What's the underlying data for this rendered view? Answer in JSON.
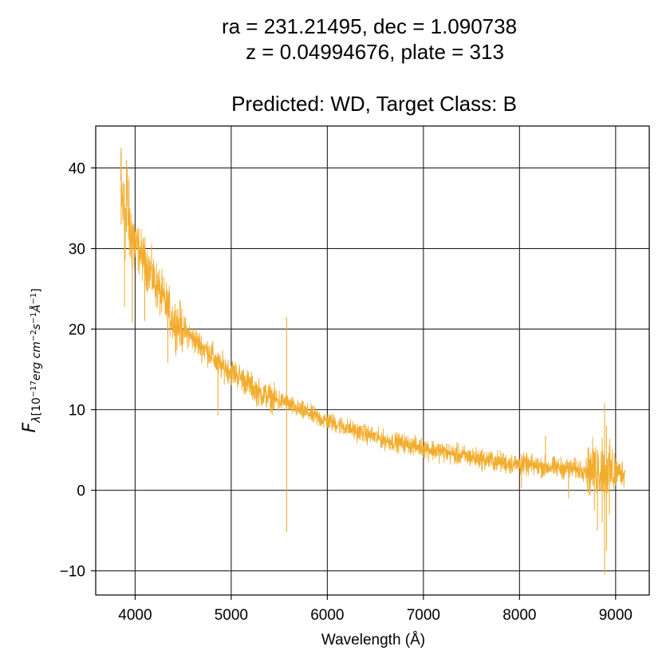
{
  "chart_data": {
    "type": "line",
    "title_lines": [
      "ra = 231.21495, dec = 1.090738",
      "z = 0.04994676, plate = 313",
      "Predicted: WD, Target Class: B"
    ],
    "xlabel": "Wavelength (Å)",
    "ylabel": {
      "symbol": "F",
      "subscript_lambda": "λ",
      "units_prefix": "[10",
      "exp1": "−17",
      "units_mid": "erg cm",
      "exp2": "−2",
      "units_s": "s",
      "exp3": "−1",
      "units_A": "Å",
      "exp4": "−1",
      "units_close": "]"
    },
    "xlim": [
      3590,
      9350
    ],
    "ylim": [
      -13.0,
      45.2
    ],
    "xticks": [
      4000,
      5000,
      6000,
      7000,
      8000,
      9000
    ],
    "xtick_labels": [
      "4000",
      "5000",
      "6000",
      "7000",
      "8000",
      "9000"
    ],
    "yticks": [
      -10,
      0,
      10,
      20,
      30,
      40
    ],
    "ytick_labels": [
      "−10",
      "0",
      "10",
      "20",
      "30",
      "40"
    ],
    "grid": true,
    "line_color": "#f2ad2e",
    "series": [
      {
        "x": [
          3850,
          3870,
          3880,
          3890,
          3900,
          3915,
          3930,
          3950,
          3970,
          3990,
          4030,
          4100,
          4200,
          4340,
          4400,
          4500,
          4600,
          4700,
          4800,
          4862,
          4900,
          5000,
          5100,
          5200,
          5300,
          5400,
          5500,
          5577,
          5600,
          5700,
          5800,
          5900,
          6000,
          6100,
          6200,
          6300,
          6400,
          6500,
          6600,
          6700,
          6800,
          6900,
          7000,
          7100,
          7200,
          7300,
          7400,
          7500,
          7600,
          7700,
          7800,
          7900,
          8000,
          8100,
          8200,
          8300,
          8400,
          8500,
          8600,
          8700,
          8750,
          8800,
          8850,
          8880,
          8900,
          8920,
          8950,
          9000,
          9050,
          9100
        ],
        "y": [
          38.0,
          35.5,
          34.5,
          33.5,
          33.0,
          36.5,
          34.0,
          31.5,
          32.0,
          30.5,
          30.0,
          28.5,
          26.0,
          22.5,
          21.0,
          20.0,
          18.8,
          17.8,
          16.8,
          15.5,
          15.4,
          14.8,
          14.0,
          13.0,
          12.0,
          11.6,
          11.0,
          11.0,
          10.6,
          10.0,
          9.6,
          9.0,
          8.6,
          8.2,
          7.8,
          7.3,
          7.0,
          6.6,
          6.2,
          6.0,
          5.8,
          5.5,
          5.3,
          5.0,
          4.8,
          4.5,
          4.3,
          4.1,
          3.9,
          3.7,
          3.5,
          3.3,
          3.2,
          3.1,
          3.0,
          2.9,
          2.8,
          2.7,
          2.6,
          2.6,
          2.5,
          2.5,
          2.4,
          2.3,
          2.3,
          2.3,
          2.3,
          2.3,
          2.2,
          2.2
        ]
      }
    ],
    "spikes": [
      {
        "x": 3855,
        "ymin": 33.0,
        "ymax": 42.5
      },
      {
        "x": 3890,
        "ymin": 22.8,
        "ymax": 38.0
      },
      {
        "x": 3910,
        "ymin": 32.0,
        "ymax": 41.0
      },
      {
        "x": 3970,
        "ymin": 20.8,
        "ymax": 33.0
      },
      {
        "x": 4100,
        "ymin": 21.0,
        "ymax": 29.0
      },
      {
        "x": 4340,
        "ymin": 15.8,
        "ymax": 24.0
      },
      {
        "x": 4862,
        "ymin": 9.3,
        "ymax": 17.0
      },
      {
        "x": 5577,
        "ymin": -5.2,
        "ymax": 21.5
      },
      {
        "x": 8020,
        "ymin": 0.3,
        "ymax": 4.5
      },
      {
        "x": 8270,
        "ymin": 2.0,
        "ymax": 6.8
      },
      {
        "x": 8510,
        "ymin": -1.0,
        "ymax": 3.5
      },
      {
        "x": 8780,
        "ymin": -2.5,
        "ymax": 4.5
      },
      {
        "x": 8810,
        "ymin": -5.0,
        "ymax": 5.0
      },
      {
        "x": 8860,
        "ymin": -4.0,
        "ymax": 6.5
      },
      {
        "x": 8885,
        "ymin": -10.4,
        "ymax": 10.8
      },
      {
        "x": 8905,
        "ymin": -7.5,
        "ymax": 8.0
      },
      {
        "x": 8935,
        "ymin": -3.0,
        "ymax": 5.5
      }
    ]
  }
}
